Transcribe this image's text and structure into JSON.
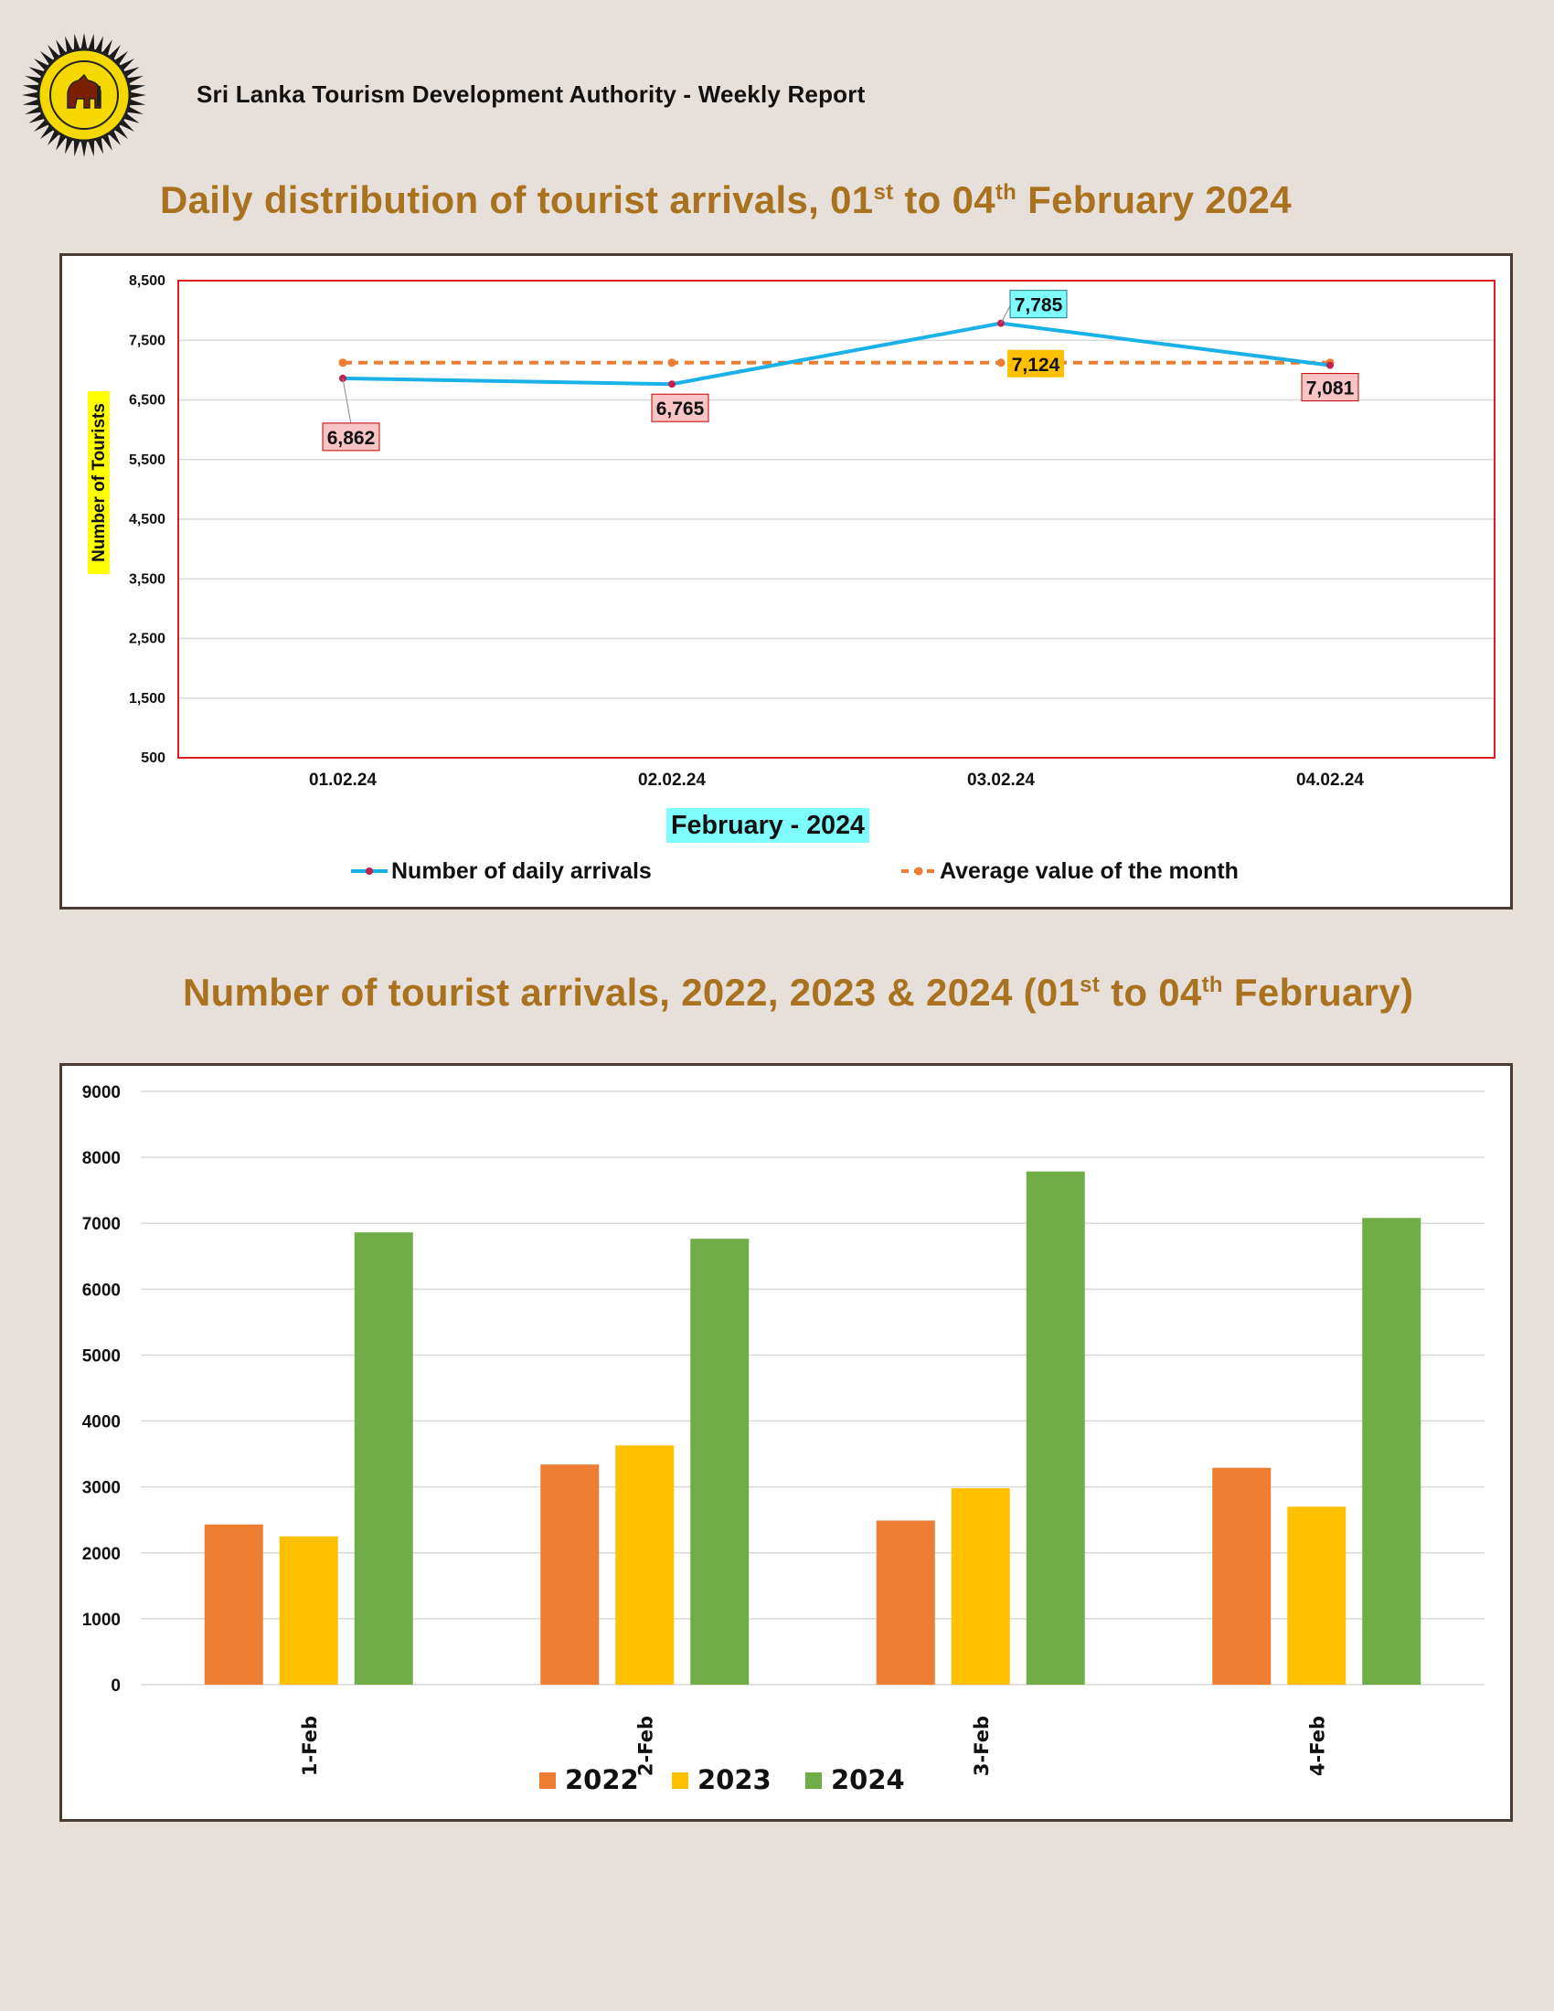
{
  "header": {
    "org_report": "Sri Lanka Tourism Development Authority  - Weekly Report"
  },
  "logo": {
    "icon": "sltda-lion-seal-icon"
  },
  "title1": {
    "main": "Daily distribution of tourist arrivals, 01",
    "sup1": "st",
    "mid": " to 04",
    "sup2": "th",
    "end": " February 2024"
  },
  "title2": {
    "main": "Number of tourist arrivals, 2022, 2023 & 2024 (01",
    "sup1": "st",
    "mid": " to 04",
    "sup2": "th",
    "end": " February)"
  },
  "chart_data": [
    {
      "type": "line",
      "categories": [
        "01.02.24",
        "02.02.24",
        "03.02.24",
        "04.02.24"
      ],
      "series": [
        {
          "name": "Number of daily arrivals",
          "values": [
            6862,
            6765,
            7785,
            7081
          ],
          "color": "#1ab0e8",
          "labels": [
            "6,862",
            "6,765",
            "7,785",
            "7,081"
          ]
        },
        {
          "name": "Average value of the month",
          "values": [
            7124,
            7124,
            7124,
            7124
          ],
          "color": "#ed7d31",
          "style": "dashed",
          "label": "7,124"
        }
      ],
      "ylabel": "Number of Tourists",
      "xlabel": "February  - 2024",
      "ylim": [
        500,
        8500
      ],
      "yticks": [
        "8,500",
        "7,500",
        "6,500",
        "5,500",
        "4,500",
        "3,500",
        "2,500",
        "1,500",
        "500"
      ],
      "yticks_values": [
        8500,
        7500,
        6500,
        5500,
        4500,
        3500,
        2500,
        1500,
        500
      ],
      "grid": true,
      "legend": "bottom",
      "plot_border_color": "#e02020"
    },
    {
      "type": "bar",
      "categories": [
        "1-Feb",
        "2-Feb",
        "3-Feb",
        "4-Feb"
      ],
      "series": [
        {
          "name": "2022",
          "values": [
            2430,
            3340,
            2490,
            3290
          ],
          "color": "#ed7d31"
        },
        {
          "name": "2023",
          "values": [
            2250,
            3630,
            2980,
            2700
          ],
          "color": "#ffc000"
        },
        {
          "name": "2024",
          "values": [
            6862,
            6765,
            7785,
            7081
          ],
          "color": "#70ad47"
        }
      ],
      "ylim": [
        0,
        9000
      ],
      "yticks": [
        "9000",
        "8000",
        "7000",
        "6000",
        "5000",
        "4000",
        "3000",
        "2000",
        "1000",
        "0"
      ],
      "yticks_values": [
        9000,
        8000,
        7000,
        6000,
        5000,
        4000,
        3000,
        2000,
        1000,
        0
      ],
      "grid": true,
      "legend": "bottom"
    }
  ]
}
